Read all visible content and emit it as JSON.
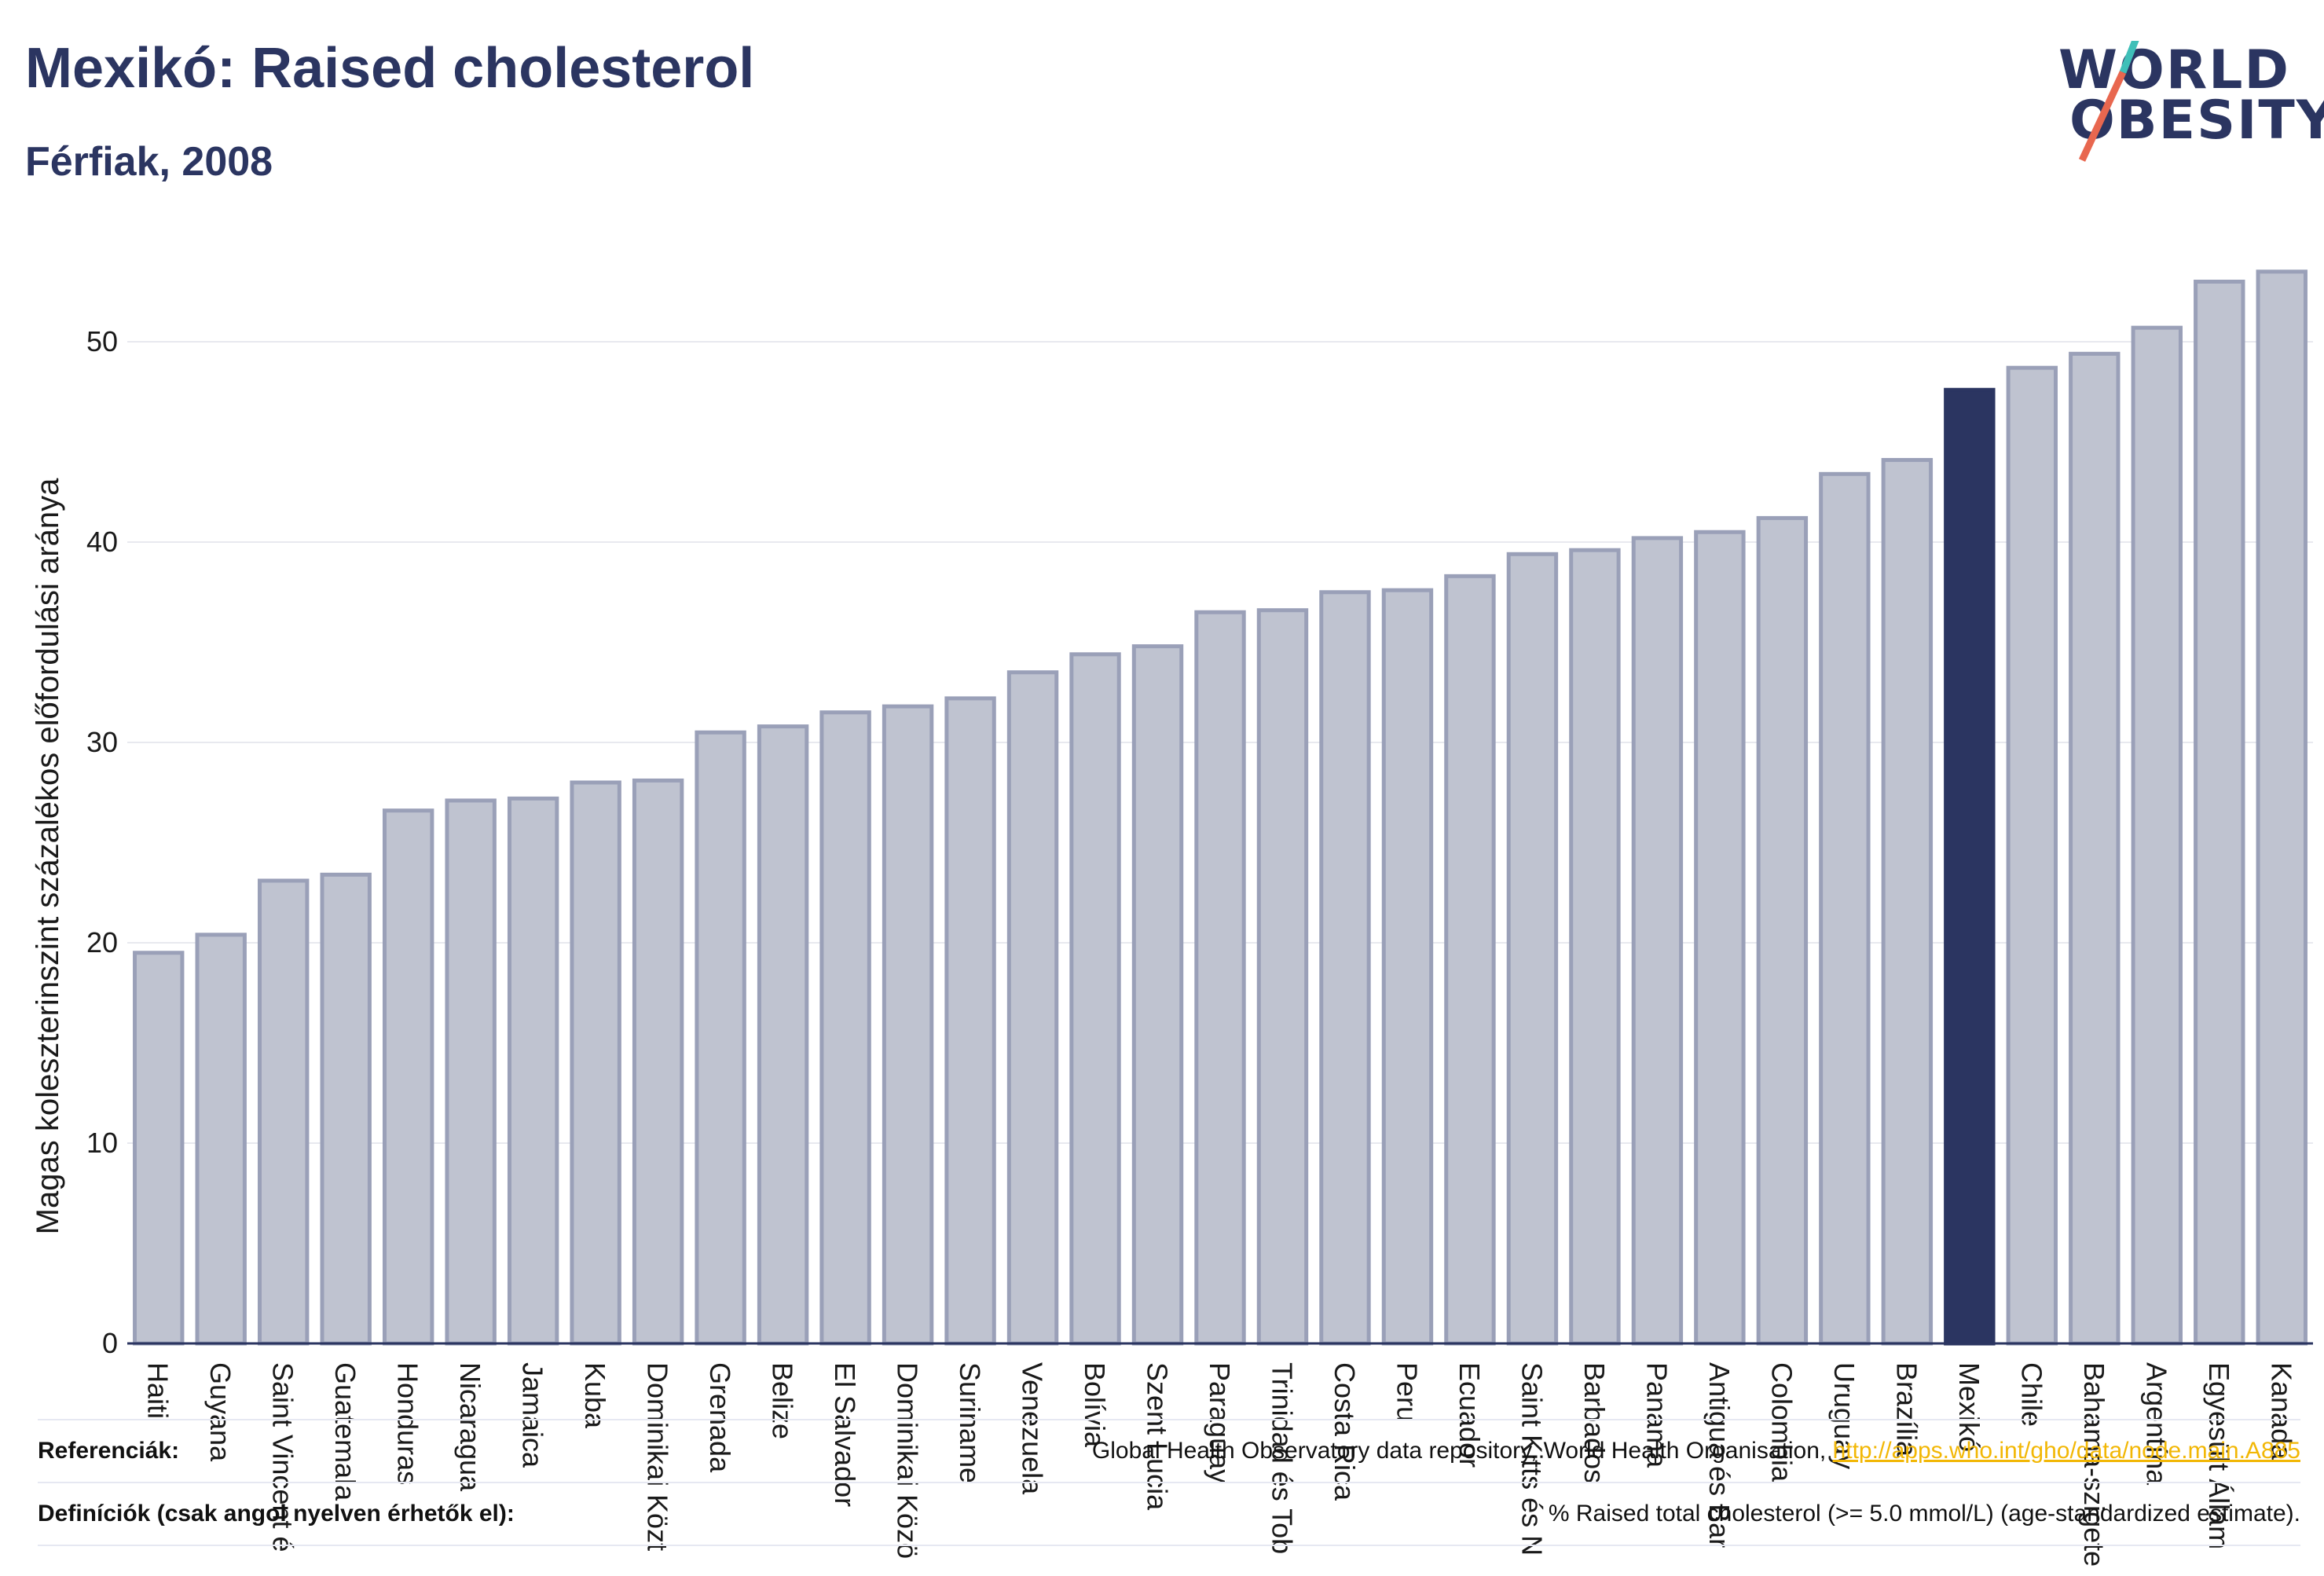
{
  "header": {
    "title": "Mexikó: Raised cholesterol",
    "subtitle": "Férfiak, 2008"
  },
  "logo": {
    "line1": "WORLD",
    "line2": "OBESITY",
    "slash_colors": [
      "#3fbfb8",
      "#e8674f"
    ]
  },
  "colors": {
    "bar": "#bfc3d0",
    "bar_border": "#9aa0b8",
    "highlight": "#2b3561",
    "grid": "#e8e9ef"
  },
  "chart_data": {
    "type": "bar",
    "title": "Mexikó: Raised cholesterol",
    "subtitle": "Férfiak, 2008",
    "xlabel": "",
    "ylabel": "Magas koleszterinszint százalékos előfordulási aránya",
    "ylim": [
      0,
      55
    ],
    "yticks": [
      0,
      10,
      20,
      30,
      40,
      50
    ],
    "grid": true,
    "highlight_category": "Mexikó",
    "categories": [
      "Haiti",
      "Guyana",
      "Saint Vincent é",
      "Guatemala",
      "Honduras",
      "Nicaragua",
      "Jamaica",
      "Kuba",
      "Dominikai Közt",
      "Grenada",
      "Belize",
      "El Salvador",
      "Dominikai Közö",
      "Suriname",
      "Venezuela",
      "Bolívia",
      "Szent Lucia",
      "Paraguay",
      "Trinidad és Tob",
      "Costa Rica",
      "Peru",
      "Ecuador",
      "Saint Kitts és N",
      "Barbados",
      "Panama",
      "Antigua és Bar",
      "Colombia",
      "Uruguay",
      "Brazília",
      "Mexikó",
      "Chile",
      "Bahama-szigete",
      "Argentína",
      "Egyesült Állam",
      "Kanada"
    ],
    "values": [
      19.5,
      20.4,
      23.1,
      23.4,
      26.6,
      27.1,
      27.2,
      28.0,
      28.1,
      30.5,
      30.8,
      31.5,
      31.8,
      32.2,
      33.5,
      34.4,
      34.8,
      36.5,
      36.6,
      37.5,
      37.6,
      38.3,
      39.4,
      39.6,
      40.2,
      40.5,
      41.2,
      43.4,
      44.1,
      47.6,
      48.7,
      49.4,
      50.7,
      53.0,
      53.5
    ]
  },
  "footer": {
    "references_label": "Referenciák:",
    "references_text": "Global Health Observatory data repository, World Health Organisation, ",
    "references_link": "http://apps.who.int/gho/data/node.main.A885",
    "definitions_label": "Definíciók (csak angol nyelven érhetők el):",
    "definitions_text": "% Raised total cholesterol (>= 5.0 mmol/L) (age-standardized estimate)."
  }
}
